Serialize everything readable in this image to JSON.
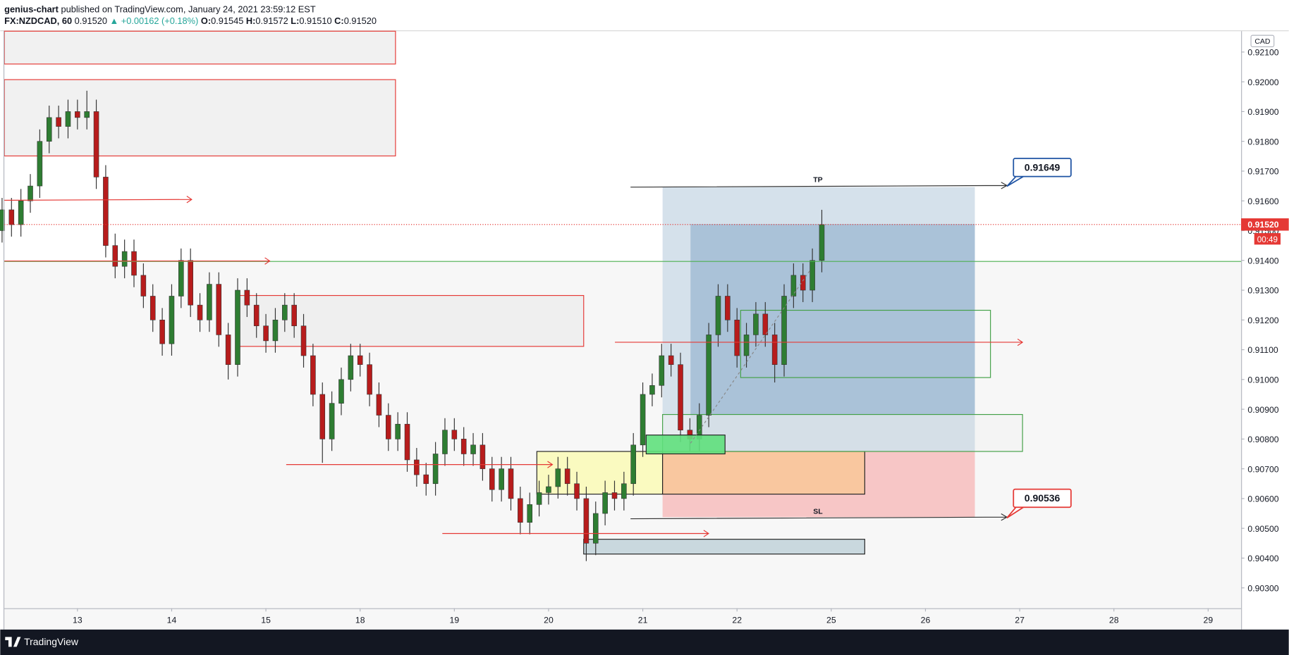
{
  "header": {
    "author": "genius-chart",
    "published": "published on TradingView.com, January 24, 2021 23:59:12 EST",
    "symbol": "FX:NZDCAD, 60",
    "price": "0.91520",
    "change": "▲ +0.00162 (+0.18%)",
    "ohlc": [
      {
        "label": "O:",
        "value": "0.91545"
      },
      {
        "label": "H:",
        "value": "0.91572"
      },
      {
        "label": "L:",
        "value": "0.91510"
      },
      {
        "label": "C:",
        "value": "0.91520"
      }
    ]
  },
  "chart_data": {
    "type": "candlestick",
    "currency": "CAD",
    "x": [
      -0.8,
      -0.7,
      -0.6,
      -0.5,
      -0.4,
      -0.3,
      -0.2,
      -0.1,
      0.0,
      0.1,
      0.2,
      0.3,
      0.4,
      0.5,
      0.6,
      0.7,
      0.8,
      0.9,
      1.0,
      1.1,
      1.2,
      1.3,
      1.4,
      1.5,
      1.6,
      1.7,
      1.8,
      1.9,
      2.0,
      2.1,
      2.2,
      2.3,
      2.4,
      2.5,
      2.6,
      2.7,
      2.8,
      2.9,
      3.0,
      3.1,
      3.2,
      3.3,
      3.4,
      3.5,
      3.6,
      3.7,
      3.8,
      3.9,
      4.0,
      4.1,
      4.2,
      4.3,
      4.4,
      4.5,
      4.6,
      4.7,
      4.8,
      4.9,
      5.0,
      5.1,
      5.2,
      5.3,
      5.4,
      5.5,
      5.6,
      5.7,
      5.8,
      5.9,
      6.0,
      6.1,
      6.2,
      6.3,
      6.4,
      6.5,
      6.6,
      6.7,
      6.8,
      6.9,
      7.0,
      7.1,
      7.2,
      7.3,
      7.4,
      7.5,
      7.6,
      7.7,
      7.8,
      7.9
    ],
    "open": [
      0.915,
      0.9157,
      0.9152,
      0.916,
      0.9165,
      0.918,
      0.9188,
      0.9185,
      0.919,
      0.9188,
      0.919,
      0.9168,
      0.9145,
      0.9138,
      0.9143,
      0.9135,
      0.9128,
      0.912,
      0.9112,
      0.9128,
      0.914,
      0.9125,
      0.912,
      0.9132,
      0.9115,
      0.9105,
      0.913,
      0.9125,
      0.9118,
      0.9113,
      0.912,
      0.9125,
      0.9118,
      0.9108,
      0.9095,
      0.908,
      0.9092,
      0.91,
      0.9108,
      0.9105,
      0.9095,
      0.9088,
      0.908,
      0.9085,
      0.9073,
      0.9068,
      0.9065,
      0.9075,
      0.9083,
      0.908,
      0.9075,
      0.9078,
      0.907,
      0.9063,
      0.907,
      0.906,
      0.9052,
      0.9058,
      0.9062,
      0.9064,
      0.907,
      0.9065,
      0.906,
      0.9045,
      0.9055,
      0.9062,
      0.906,
      0.9065,
      0.9078,
      0.9095,
      0.9098,
      0.9108,
      0.9105,
      0.9083,
      0.908,
      0.9088,
      0.9115,
      0.9128,
      0.912,
      0.9108,
      0.9115,
      0.9122,
      0.9115,
      0.9105,
      0.9128,
      0.9135,
      0.913,
      0.914
    ],
    "high": [
      0.9161,
      0.9161,
      0.9164,
      0.9169,
      0.9184,
      0.9192,
      0.9192,
      0.9194,
      0.9194,
      0.9197,
      0.9194,
      0.9172,
      0.9149,
      0.9147,
      0.9147,
      0.9139,
      0.9132,
      0.9124,
      0.9132,
      0.9144,
      0.9144,
      0.9129,
      0.9136,
      0.9136,
      0.9119,
      0.9134,
      0.9134,
      0.9129,
      0.9122,
      0.9124,
      0.9129,
      0.9129,
      0.9122,
      0.9112,
      0.9099,
      0.9096,
      0.9104,
      0.9112,
      0.9112,
      0.9109,
      0.9099,
      0.9092,
      0.9089,
      0.9089,
      0.9077,
      0.9072,
      0.9079,
      0.9087,
      0.9087,
      0.9084,
      0.9082,
      0.9082,
      0.9074,
      0.9074,
      0.9074,
      0.9064,
      0.9062,
      0.9066,
      0.9068,
      0.9074,
      0.9074,
      0.9069,
      0.9064,
      0.9059,
      0.9066,
      0.9066,
      0.9069,
      0.9082,
      0.9099,
      0.9102,
      0.9112,
      0.9112,
      0.9109,
      0.9087,
      0.9092,
      0.9119,
      0.9132,
      0.9132,
      0.9124,
      0.9119,
      0.9126,
      0.9126,
      0.9119,
      0.9132,
      0.9139,
      0.9139,
      0.9144,
      0.9157
    ],
    "low": [
      0.9146,
      0.9148,
      0.9148,
      0.9156,
      0.9161,
      0.9176,
      0.9181,
      0.9181,
      0.9184,
      0.9184,
      0.9164,
      0.9141,
      0.9134,
      0.9134,
      0.9131,
      0.9124,
      0.9116,
      0.9108,
      0.9108,
      0.9124,
      0.9121,
      0.9116,
      0.9116,
      0.9111,
      0.91,
      0.9101,
      0.9121,
      0.9114,
      0.9109,
      0.9109,
      0.9116,
      0.9114,
      0.9104,
      0.9091,
      0.9072,
      0.9076,
      0.9088,
      0.9096,
      0.9101,
      0.9091,
      0.9084,
      0.9076,
      0.9076,
      0.9069,
      0.9064,
      0.9061,
      0.9061,
      0.9071,
      0.9076,
      0.9071,
      0.9071,
      0.9066,
      0.9059,
      0.9059,
      0.9056,
      0.9048,
      0.9048,
      0.9054,
      0.9058,
      0.906,
      0.9061,
      0.9056,
      0.9039,
      0.9041,
      0.9051,
      0.9056,
      0.9056,
      0.9061,
      0.9074,
      0.9091,
      0.9094,
      0.9101,
      0.9079,
      0.9076,
      0.9076,
      0.9084,
      0.9111,
      0.9116,
      0.9104,
      0.9104,
      0.9111,
      0.9111,
      0.9099,
      0.9101,
      0.9124,
      0.9126,
      0.9126,
      0.9136
    ],
    "close": [
      0.9157,
      0.9152,
      0.916,
      0.9165,
      0.918,
      0.9188,
      0.9185,
      0.919,
      0.9188,
      0.919,
      0.9168,
      0.9145,
      0.9138,
      0.9143,
      0.9135,
      0.9128,
      0.912,
      0.9112,
      0.9128,
      0.914,
      0.9125,
      0.912,
      0.9132,
      0.9115,
      0.9105,
      0.913,
      0.9125,
      0.9118,
      0.9113,
      0.912,
      0.9125,
      0.9118,
      0.9108,
      0.9095,
      0.908,
      0.9092,
      0.91,
      0.9108,
      0.9105,
      0.9095,
      0.9088,
      0.908,
      0.9085,
      0.9073,
      0.9068,
      0.9065,
      0.9075,
      0.9083,
      0.908,
      0.9075,
      0.9078,
      0.907,
      0.9063,
      0.907,
      0.906,
      0.9052,
      0.9058,
      0.9062,
      0.9064,
      0.907,
      0.9065,
      0.906,
      0.9045,
      0.9055,
      0.9062,
      0.906,
      0.9065,
      0.9078,
      0.9095,
      0.9098,
      0.9108,
      0.9105,
      0.9083,
      0.908,
      0.9088,
      0.9115,
      0.9128,
      0.912,
      0.9108,
      0.9115,
      0.9122,
      0.9115,
      0.9105,
      0.9128,
      0.9135,
      0.913,
      0.914,
      0.9152
    ],
    "up_color": "#2e7d32",
    "down_color": "#b71c1c",
    "xlim": [
      -0.776,
      12.35
    ],
    "xticks": [
      {
        "value": 0,
        "label": "13"
      },
      {
        "value": 1,
        "label": "14"
      },
      {
        "value": 2,
        "label": "15"
      },
      {
        "value": 3,
        "label": "18"
      },
      {
        "value": 4,
        "label": "19"
      },
      {
        "value": 5,
        "label": "20"
      },
      {
        "value": 6,
        "label": "21"
      },
      {
        "value": 7,
        "label": "22"
      },
      {
        "value": 8,
        "label": "25"
      },
      {
        "value": 9,
        "label": "26"
      },
      {
        "value": 10,
        "label": "27"
      },
      {
        "value": 11,
        "label": "28"
      },
      {
        "value": 12,
        "label": "29"
      }
    ],
    "ylim": [
      0.9016,
      0.9217
    ],
    "yticks": [
      {
        "value": 0.903,
        "label": "0.90300"
      },
      {
        "value": 0.904,
        "label": "0.90400"
      },
      {
        "value": 0.905,
        "label": "0.90500"
      },
      {
        "value": 0.906,
        "label": "0.90600"
      },
      {
        "value": 0.907,
        "label": "0.90700"
      },
      {
        "value": 0.908,
        "label": "0.90800"
      },
      {
        "value": 0.909,
        "label": "0.90900"
      },
      {
        "value": 0.91,
        "label": "0.91000"
      },
      {
        "value": 0.911,
        "label": "0.91100"
      },
      {
        "value": 0.912,
        "label": "0.91200"
      },
      {
        "value": 0.913,
        "label": "0.91300"
      },
      {
        "value": 0.914,
        "label": "0.91400"
      },
      {
        "value": 0.915,
        "label": "0.91500"
      },
      {
        "value": 0.916,
        "label": "0.91600"
      },
      {
        "value": 0.917,
        "label": "0.91700"
      },
      {
        "value": 0.918,
        "label": "0.91800"
      },
      {
        "value": 0.919,
        "label": "0.91900"
      },
      {
        "value": 0.92,
        "label": "0.92000"
      },
      {
        "value": 0.921,
        "label": "0.92100"
      }
    ],
    "price_tag": "0.91520",
    "countdown": "00:49",
    "annotations": {
      "tp": "TP",
      "sl": "SL",
      "tp_price": "0.91649",
      "sl_price": "0.90536"
    }
  },
  "footer": {
    "brand": "TradingView"
  }
}
